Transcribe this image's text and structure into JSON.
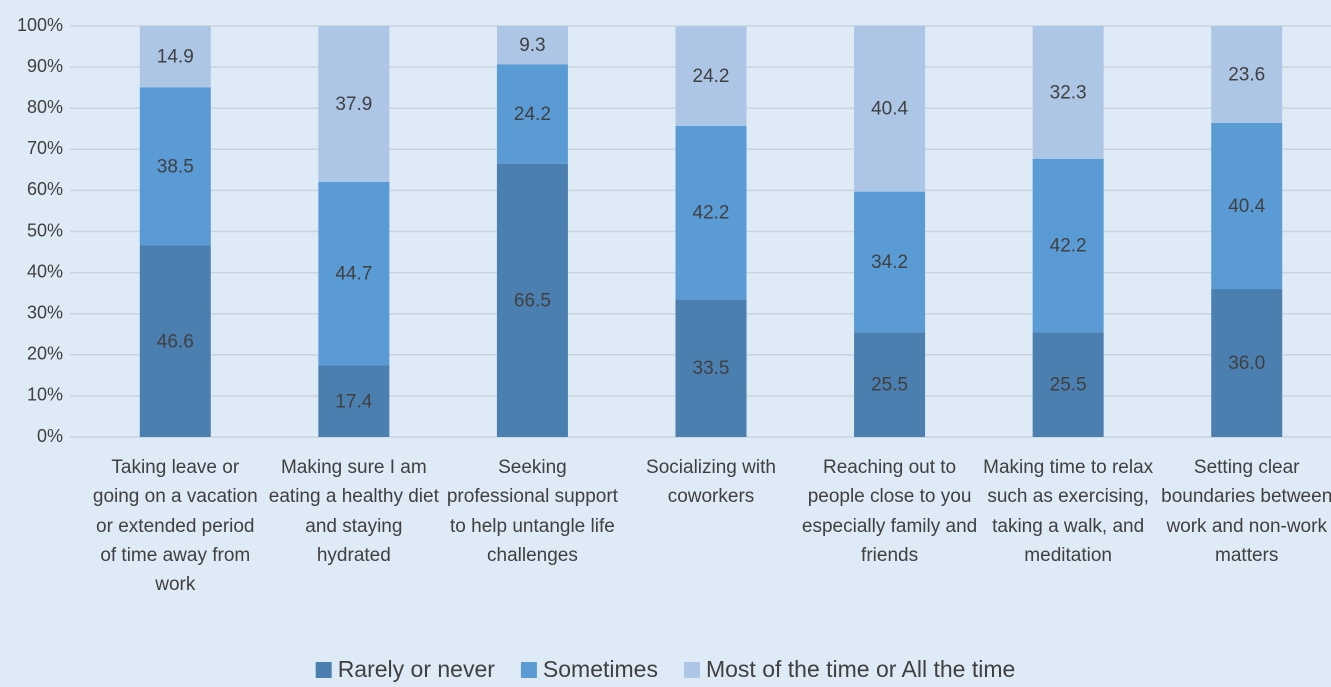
{
  "chart_data": {
    "type": "stacked_bar",
    "categories": [
      "Taking leave or going on a vacation or extended period of time away from work",
      "Making sure I am eating a healthy diet and staying hydrated",
      "Seeking professional support to help untangle life challenges",
      "Socializing with coworkers",
      "Reaching out to people close to you especially family and friends",
      "Making time to relax such as exercising, taking a walk, and meditation",
      "Setting clear boundaries between work and non-work matters"
    ],
    "series": [
      {
        "name": "Rarely or never",
        "color": "#4a7fb0",
        "values": [
          46.6,
          17.4,
          66.5,
          33.5,
          25.5,
          25.5,
          36.0
        ],
        "value_labels": [
          "46.6",
          "17.4",
          "66.5",
          "33.5",
          "25.5",
          "25.5",
          "36.0"
        ]
      },
      {
        "name": "Sometimes",
        "color": "#5b9bd5",
        "values": [
          38.5,
          44.7,
          24.2,
          42.2,
          34.2,
          42.2,
          40.4
        ],
        "value_labels": [
          "38.5",
          "44.7",
          "24.2",
          "42.2",
          "34.2",
          "42.2",
          "40.4"
        ]
      },
      {
        "name": "Most of the time or All the time",
        "color": "#adc6e5",
        "values": [
          14.9,
          37.9,
          9.3,
          24.2,
          40.4,
          32.3,
          23.6
        ],
        "value_labels": [
          "14.9",
          "37.9",
          "9.3",
          "24.2",
          "40.4",
          "32.3",
          "23.6"
        ]
      }
    ],
    "ylim": [
      0,
      100
    ],
    "yticks": [
      {
        "value": 0,
        "label": "0%"
      },
      {
        "value": 10,
        "label": "10%"
      },
      {
        "value": 20,
        "label": "20%"
      },
      {
        "value": 30,
        "label": "30%"
      },
      {
        "value": 40,
        "label": "40%"
      },
      {
        "value": 50,
        "label": "50%"
      },
      {
        "value": 60,
        "label": "60%"
      },
      {
        "value": 70,
        "label": "70%"
      },
      {
        "value": 80,
        "label": "80%"
      },
      {
        "value": 90,
        "label": "90%"
      },
      {
        "value": 100,
        "label": "100%"
      }
    ],
    "grid": true,
    "legend": "bottom"
  }
}
